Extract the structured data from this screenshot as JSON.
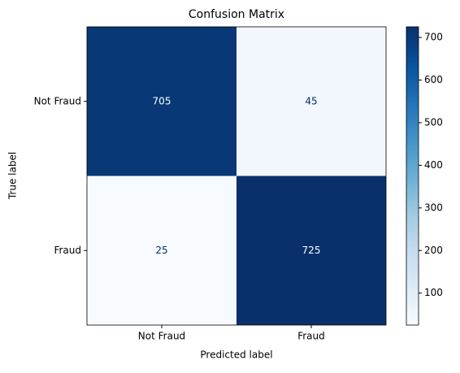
{
  "chart_data": {
    "type": "heatmap",
    "title": "Confusion Matrix",
    "x_label": "Predicted label",
    "y_label": "True label",
    "x_categories": [
      "Not Fraud",
      "Fraud"
    ],
    "y_categories": [
      "Not Fraud",
      "Fraud"
    ],
    "values": [
      [
        705,
        45
      ],
      [
        25,
        725
      ]
    ],
    "colormap": "Blues",
    "colorbar_lim": [
      25,
      725
    ],
    "colorbar_ticks": [
      100,
      200,
      300,
      400,
      500,
      600,
      700
    ]
  }
}
